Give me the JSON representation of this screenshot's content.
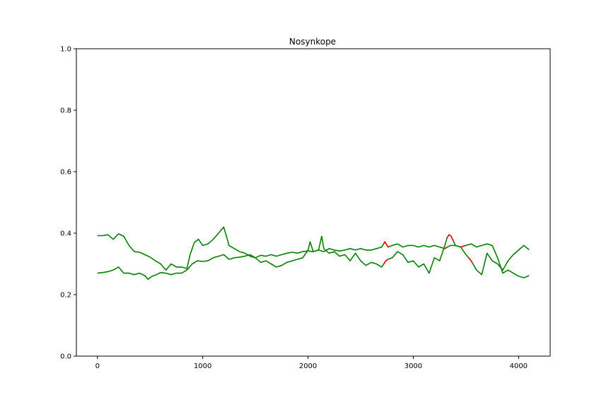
{
  "chart_data": {
    "type": "line",
    "title": "Nosynkope",
    "xlabel": "",
    "ylabel": "",
    "xlim": [
      -200,
      4300
    ],
    "ylim": [
      0.0,
      1.0
    ],
    "x_ticks": [
      0,
      1000,
      2000,
      3000,
      4000
    ],
    "x_tick_labels": [
      "0",
      "1000",
      "2000",
      "3000",
      "4000"
    ],
    "y_ticks": [
      0.0,
      0.2,
      0.4,
      0.6,
      0.8,
      1.0
    ],
    "y_tick_labels": [
      "0.0",
      "0.2",
      "0.4",
      "0.6",
      "0.8",
      "1.0"
    ],
    "grid": false,
    "legend": "none",
    "colors": {
      "normal": "#008000",
      "highlight": "#ff0000"
    },
    "series": [
      {
        "color": "#008000",
        "x": [
          0,
          50,
          100,
          150,
          200,
          250,
          300,
          350,
          400,
          450,
          500,
          550,
          600,
          650,
          700,
          750,
          800,
          850,
          880,
          920,
          960,
          1000,
          1050,
          1100,
          1150,
          1200,
          1250,
          1300,
          1350,
          1400,
          1450,
          1500,
          1550,
          1600,
          1650,
          1700,
          1750,
          1800,
          1850,
          1900,
          1950,
          2000,
          2020,
          2050,
          2100,
          2130,
          2150,
          2200,
          2250,
          2300,
          2350,
          2400,
          2450,
          2500,
          2550,
          2600,
          2650,
          2700,
          2740,
          2760,
          2800,
          2850,
          2900,
          2950,
          3000,
          3050,
          3100,
          3150,
          3200,
          3250,
          3300,
          3320,
          3340,
          3360,
          3380,
          3400,
          3450,
          3500,
          3550,
          3600,
          3650,
          3700,
          3750,
          3800,
          3850,
          3900,
          3950,
          4000,
          4050,
          4100
        ],
        "y": [
          0.392,
          0.392,
          0.395,
          0.38,
          0.398,
          0.39,
          0.36,
          0.34,
          0.338,
          0.33,
          0.322,
          0.31,
          0.3,
          0.28,
          0.3,
          0.29,
          0.29,
          0.285,
          0.33,
          0.37,
          0.38,
          0.36,
          0.365,
          0.38,
          0.4,
          0.42,
          0.36,
          0.35,
          0.34,
          0.335,
          0.325,
          0.32,
          0.305,
          0.31,
          0.3,
          0.29,
          0.295,
          0.305,
          0.31,
          0.315,
          0.32,
          0.345,
          0.372,
          0.34,
          0.345,
          0.39,
          0.35,
          0.335,
          0.34,
          0.325,
          0.33,
          0.31,
          0.335,
          0.31,
          0.295,
          0.305,
          0.3,
          0.29,
          0.31,
          0.315,
          0.32,
          0.34,
          0.33,
          0.305,
          0.31,
          0.29,
          0.3,
          0.27,
          0.32,
          0.31,
          0.36,
          0.385,
          0.395,
          0.39,
          0.375,
          0.36,
          0.355,
          0.33,
          0.31,
          0.28,
          0.265,
          0.335,
          0.31,
          0.3,
          0.28,
          0.31,
          0.33,
          0.345,
          0.36,
          0.346
        ],
        "highlight_x": [
          [
            2720,
            2760
          ],
          [
            3320,
            3380
          ],
          [
            3520,
            3560
          ]
        ]
      },
      {
        "color": "#008000",
        "x": [
          0,
          50,
          100,
          150,
          200,
          250,
          300,
          350,
          400,
          450,
          480,
          520,
          560,
          600,
          650,
          700,
          750,
          800,
          850,
          900,
          950,
          1000,
          1050,
          1100,
          1150,
          1200,
          1250,
          1300,
          1350,
          1400,
          1450,
          1500,
          1550,
          1600,
          1650,
          1700,
          1750,
          1800,
          1850,
          1900,
          1950,
          2000,
          2050,
          2100,
          2150,
          2200,
          2250,
          2300,
          2350,
          2400,
          2450,
          2500,
          2550,
          2600,
          2650,
          2700,
          2730,
          2760,
          2800,
          2850,
          2900,
          2950,
          3000,
          3050,
          3100,
          3150,
          3200,
          3250,
          3300,
          3350,
          3400,
          3450,
          3500,
          3550,
          3600,
          3650,
          3700,
          3750,
          3800,
          3850,
          3900,
          3950,
          4000,
          4050,
          4100
        ],
        "y": [
          0.27,
          0.272,
          0.275,
          0.28,
          0.29,
          0.27,
          0.27,
          0.265,
          0.27,
          0.262,
          0.25,
          0.26,
          0.265,
          0.272,
          0.27,
          0.265,
          0.27,
          0.27,
          0.28,
          0.3,
          0.31,
          0.308,
          0.31,
          0.32,
          0.325,
          0.33,
          0.315,
          0.32,
          0.322,
          0.325,
          0.33,
          0.32,
          0.328,
          0.325,
          0.33,
          0.325,
          0.33,
          0.335,
          0.338,
          0.335,
          0.34,
          0.342,
          0.34,
          0.345,
          0.34,
          0.35,
          0.345,
          0.342,
          0.345,
          0.35,
          0.345,
          0.35,
          0.345,
          0.345,
          0.35,
          0.355,
          0.372,
          0.355,
          0.36,
          0.365,
          0.355,
          0.36,
          0.36,
          0.355,
          0.36,
          0.355,
          0.36,
          0.355,
          0.35,
          0.36,
          0.36,
          0.355,
          0.36,
          0.365,
          0.355,
          0.36,
          0.365,
          0.36,
          0.32,
          0.27,
          0.28,
          0.27,
          0.26,
          0.255,
          0.262
        ],
        "highlight_x": [
          [
            2720,
            2770
          ],
          [
            3300,
            3330
          ],
          [
            3450,
            3500
          ]
        ]
      }
    ]
  }
}
